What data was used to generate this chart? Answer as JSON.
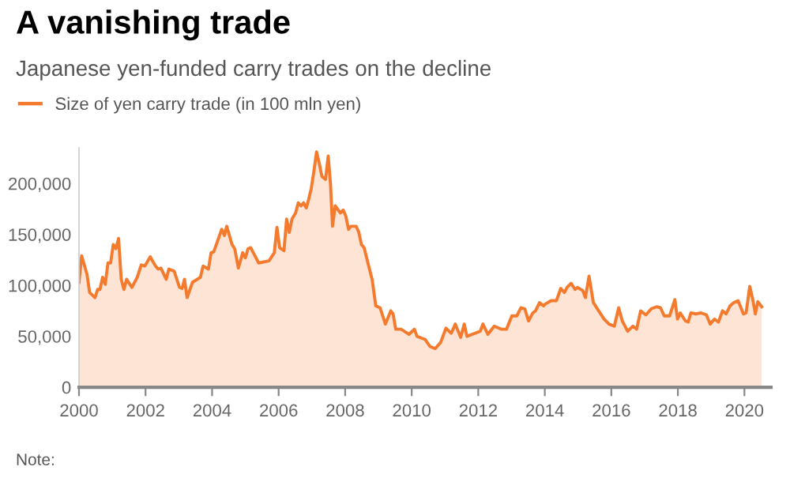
{
  "chart_data": {
    "type": "area",
    "title": "A vanishing trade",
    "subtitle": "Japanese yen-funded carry trades on the decline",
    "x": [
      2000.0,
      2000.08,
      2000.24,
      2000.32,
      2000.48,
      2000.56,
      2000.63,
      2000.71,
      2000.79,
      2000.87,
      2000.95,
      2001.03,
      2001.11,
      2001.19,
      2001.27,
      2001.35,
      2001.43,
      2001.59,
      2001.75,
      2001.87,
      2001.98,
      2002.14,
      2002.3,
      2002.38,
      2002.46,
      2002.62,
      2002.7,
      2002.86,
      2003.02,
      2003.1,
      2003.17,
      2003.25,
      2003.41,
      2003.65,
      2003.73,
      2003.89,
      2003.97,
      2004.05,
      2004.29,
      2004.37,
      2004.44,
      2004.6,
      2004.68,
      2004.79,
      2004.92,
      2005.0,
      2005.08,
      2005.16,
      2005.24,
      2005.4,
      2005.71,
      2005.87,
      2005.95,
      2006.03,
      2006.16,
      2006.24,
      2006.32,
      2006.4,
      2006.51,
      2006.59,
      2006.67,
      2006.75,
      2006.83,
      2006.9,
      2006.98,
      2007.06,
      2007.14,
      2007.22,
      2007.3,
      2007.41,
      2007.49,
      2007.56,
      2007.62,
      2007.7,
      2007.86,
      2007.94,
      2008.02,
      2008.1,
      2008.17,
      2008.33,
      2008.41,
      2008.49,
      2008.57,
      2008.73,
      2008.81,
      2008.92,
      2009.05,
      2009.21,
      2009.37,
      2009.44,
      2009.52,
      2009.68,
      2009.92,
      2010.08,
      2010.16,
      2010.4,
      2010.55,
      2010.71,
      2010.87,
      2011.03,
      2011.19,
      2011.31,
      2011.47,
      2011.58,
      2011.66,
      2011.9,
      2012.06,
      2012.14,
      2012.29,
      2012.48,
      2012.69,
      2012.85,
      2013.01,
      2013.16,
      2013.28,
      2013.4,
      2013.51,
      2013.64,
      2013.72,
      2013.84,
      2013.96,
      2014.03,
      2014.19,
      2014.35,
      2014.48,
      2014.59,
      2014.67,
      2014.79,
      2014.91,
      2014.98,
      2015.14,
      2015.22,
      2015.33,
      2015.46,
      2015.62,
      2015.78,
      2015.93,
      2016.09,
      2016.22,
      2016.33,
      2016.49,
      2016.65,
      2016.76,
      2016.88,
      2017.04,
      2017.2,
      2017.36,
      2017.48,
      2017.59,
      2017.75,
      2017.91,
      2017.99,
      2018.07,
      2018.23,
      2018.31,
      2018.39,
      2018.54,
      2018.7,
      2018.86,
      2018.97,
      2019.1,
      2019.22,
      2019.34,
      2019.45,
      2019.57,
      2019.68,
      2019.81,
      2019.97,
      2020.05,
      2020.16,
      2020.24,
      2020.33,
      2020.4,
      2020.52
    ],
    "series": [
      {
        "name": "Size of yen carry trade (in 100 mln yen)",
        "color": "#f47a2e",
        "values": [
          103000,
          129000,
          111000,
          93000,
          88000,
          96000,
          96000,
          108000,
          101000,
          122000,
          122000,
          140000,
          136000,
          146000,
          106000,
          96000,
          106000,
          98000,
          108000,
          120000,
          119000,
          128000,
          119000,
          116000,
          117000,
          106000,
          116000,
          114000,
          98000,
          97000,
          106000,
          88000,
          103000,
          108000,
          119000,
          116000,
          132000,
          133000,
          155000,
          149000,
          158000,
          140000,
          136000,
          117000,
          132000,
          127000,
          136000,
          137000,
          132000,
          122000,
          124000,
          132000,
          157000,
          137000,
          134000,
          165000,
          152000,
          165000,
          171000,
          181000,
          178000,
          181000,
          176000,
          184000,
          195000,
          212000,
          231000,
          220000,
          207000,
          204000,
          227000,
          199000,
          158000,
          178000,
          171000,
          174000,
          168000,
          155000,
          158000,
          158000,
          152000,
          140000,
          137000,
          116000,
          106000,
          80000,
          78000,
          62000,
          75000,
          72000,
          57000,
          57000,
          52000,
          57000,
          50000,
          47000,
          40000,
          38000,
          44000,
          58000,
          53000,
          62000,
          49000,
          62000,
          50000,
          53000,
          55000,
          62000,
          52000,
          60000,
          57000,
          57000,
          70000,
          70000,
          78000,
          77000,
          65000,
          73000,
          75000,
          83000,
          80000,
          82000,
          85000,
          85000,
          97000,
          93000,
          98000,
          102000,
          96000,
          98000,
          95000,
          88000,
          109000,
          83000,
          75000,
          67000,
          62000,
          60000,
          78000,
          65000,
          55000,
          60000,
          57000,
          75000,
          71000,
          77000,
          79000,
          78000,
          70000,
          70000,
          86000,
          67000,
          73000,
          65000,
          64000,
          73000,
          72000,
          73000,
          71000,
          62000,
          67000,
          64000,
          75000,
          72000,
          80000,
          83000,
          85000,
          72000,
          73000,
          99000,
          88000,
          72000,
          84000,
          79000
        ]
      }
    ],
    "xlim": [
      2000,
      2020.8
    ],
    "xticks": [
      2000,
      2002,
      2004,
      2006,
      2008,
      2010,
      2012,
      2014,
      2016,
      2018,
      2020
    ],
    "ylim": [
      0,
      235000
    ],
    "yticks": [
      {
        "value": 0,
        "label": "0"
      },
      {
        "value": 50000,
        "label": "50,000"
      },
      {
        "value": 100000,
        "label": "100,000"
      },
      {
        "value": 150000,
        "label": "150,000"
      },
      {
        "value": 200000,
        "label": "200,000"
      }
    ],
    "grid": false,
    "legend": "top left",
    "annotations": [
      "Note:"
    ]
  }
}
